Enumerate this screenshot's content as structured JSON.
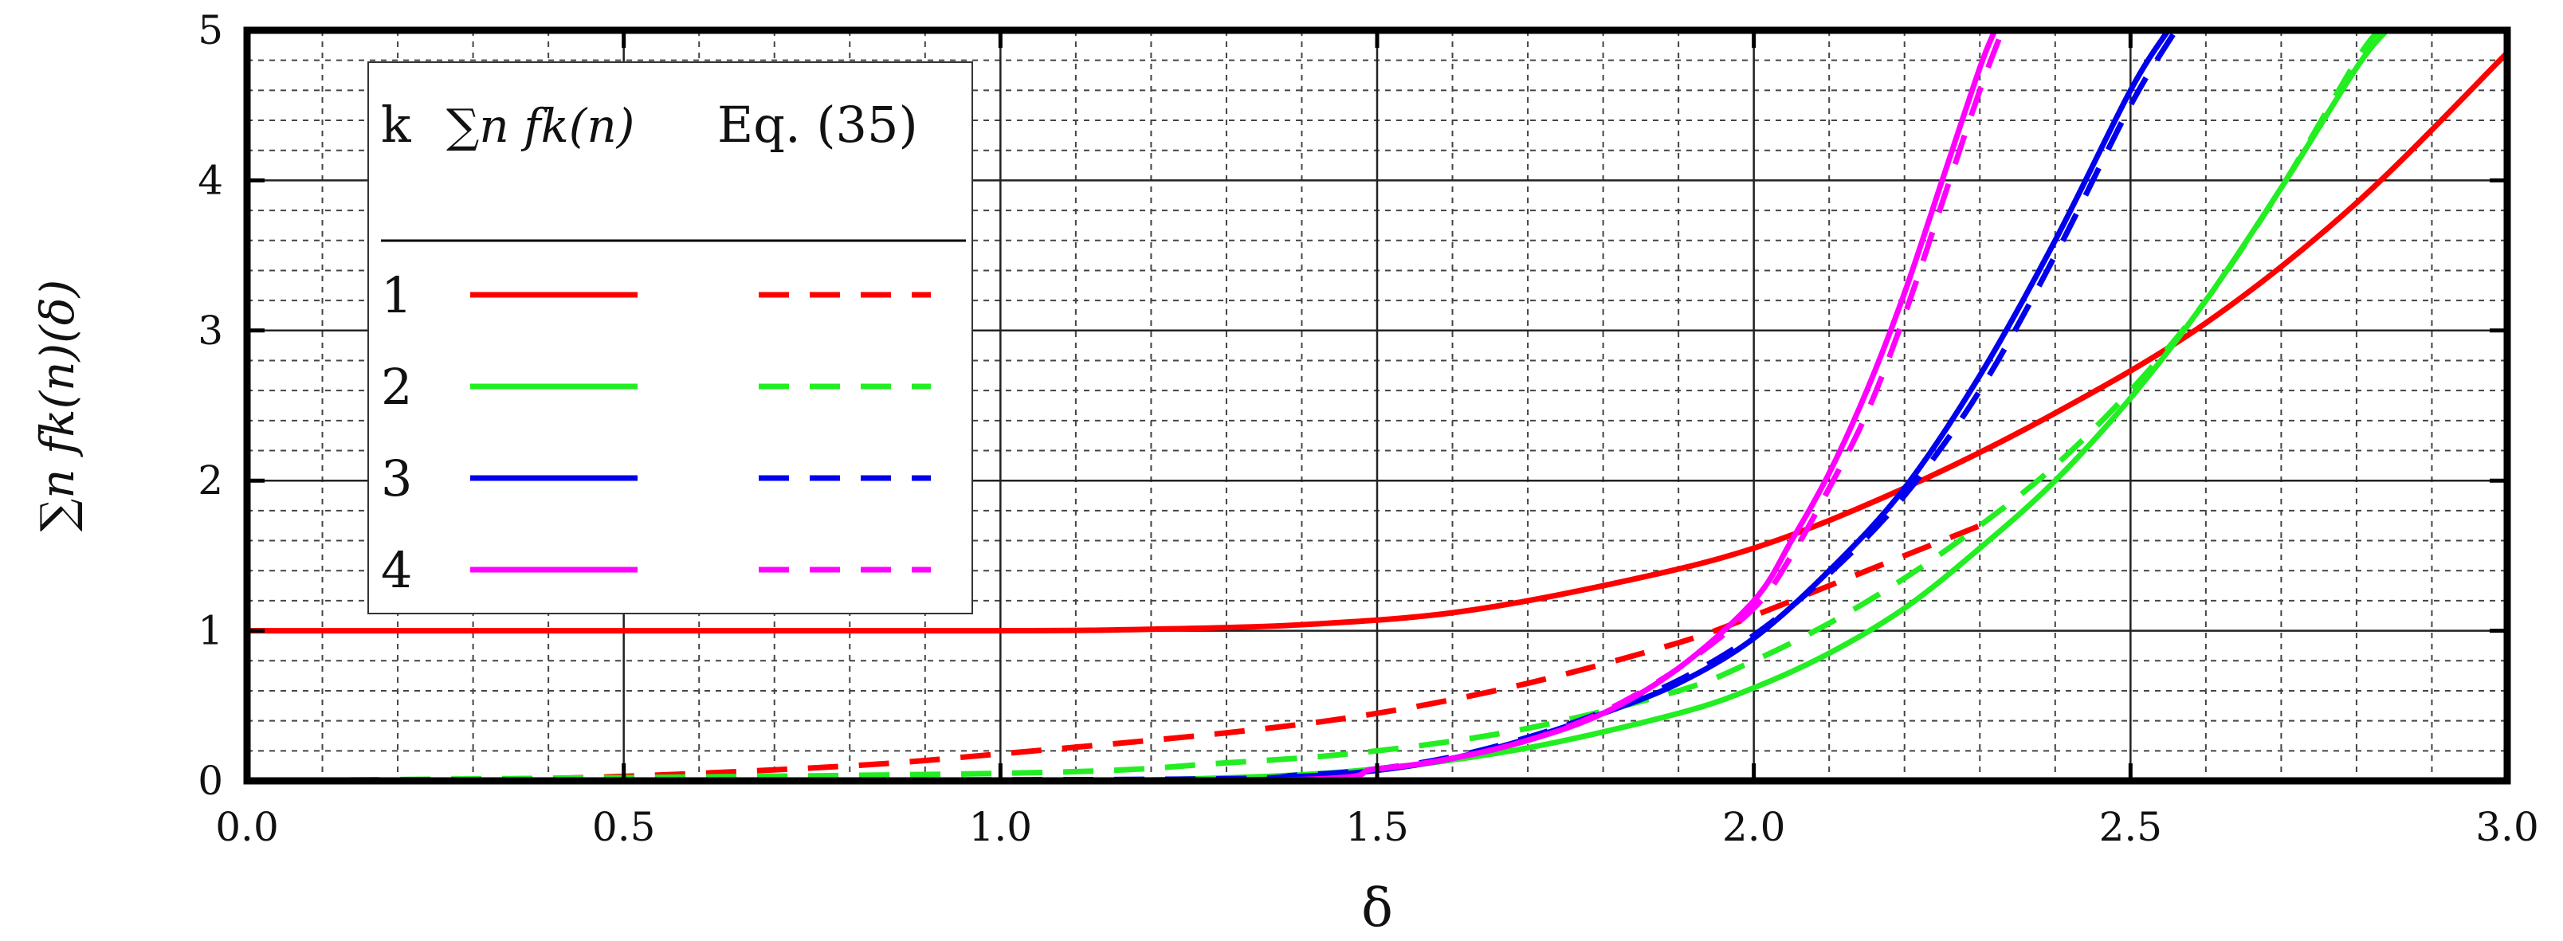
{
  "chart_data": {
    "type": "line",
    "title": "",
    "xlabel": "δ",
    "ylabel": "∑n fk(n)(δ)",
    "xlim": [
      0,
      3
    ],
    "ylim": [
      0,
      5
    ],
    "x_ticks": [
      "0.0",
      "0.5",
      "1.0",
      "1.5",
      "2.0",
      "2.5",
      "3.0"
    ],
    "y_ticks": [
      "0",
      "1",
      "2",
      "3",
      "4",
      "5"
    ],
    "grid": true,
    "legend_placement": "upper-left",
    "legend": {
      "header": [
        "k",
        "∑n fk(n)",
        "Eq. (35)"
      ],
      "rows": [
        "1",
        "2",
        "3",
        "4"
      ]
    },
    "series": [
      {
        "k": "1",
        "style": "solid",
        "color": "#ff0000",
        "x": [
          0.0,
          0.5,
          1.0,
          1.2,
          1.4,
          1.6,
          1.8,
          2.0,
          2.2,
          2.4,
          2.6,
          2.8,
          3.0
        ],
        "y": [
          1.0,
          1.0,
          1.0,
          1.01,
          1.04,
          1.12,
          1.3,
          1.55,
          1.95,
          2.45,
          3.05,
          3.85,
          4.85
        ]
      },
      {
        "k": "1",
        "style": "dashed",
        "color": "#ff0000",
        "x": [
          0.0,
          0.3,
          0.5,
          0.8,
          1.0,
          1.3,
          1.5,
          1.7,
          1.9,
          2.0,
          2.1,
          2.2,
          2.3
        ],
        "y": [
          0.0,
          0.01,
          0.03,
          0.1,
          0.18,
          0.32,
          0.45,
          0.65,
          0.92,
          1.1,
          1.3,
          1.5,
          1.7
        ]
      },
      {
        "k": "2",
        "style": "solid",
        "color": "#22ee22",
        "x": [
          0.0,
          1.0,
          1.3,
          1.5,
          1.7,
          1.9,
          2.0,
          2.1,
          2.2,
          2.3,
          2.4,
          2.5,
          2.6,
          2.7,
          2.8,
          2.84
        ],
        "y": [
          0.0,
          0.0,
          0.02,
          0.08,
          0.22,
          0.45,
          0.62,
          0.85,
          1.15,
          1.55,
          2.0,
          2.55,
          3.2,
          3.95,
          4.75,
          5.0
        ]
      },
      {
        "k": "2",
        "style": "dashed",
        "color": "#22ee22",
        "x": [
          0.0,
          1.0,
          1.3,
          1.5,
          1.7,
          1.9,
          2.0,
          2.1,
          2.2,
          2.3,
          2.4,
          2.5,
          2.6,
          2.7,
          2.8,
          2.83
        ],
        "y": [
          0.0,
          0.05,
          0.12,
          0.2,
          0.35,
          0.6,
          0.8,
          1.05,
          1.35,
          1.7,
          2.1,
          2.6,
          3.2,
          3.95,
          4.8,
          5.0
        ]
      },
      {
        "k": "3",
        "style": "solid",
        "color": "#0000ee",
        "x": [
          0.0,
          1.2,
          1.4,
          1.5,
          1.6,
          1.7,
          1.8,
          1.9,
          2.0,
          2.1,
          2.2,
          2.3,
          2.4,
          2.5,
          2.55
        ],
        "y": [
          0.0,
          0.0,
          0.03,
          0.07,
          0.15,
          0.28,
          0.45,
          0.65,
          0.95,
          1.4,
          1.95,
          2.7,
          3.6,
          4.6,
          5.0
        ]
      },
      {
        "k": "3",
        "style": "dashed",
        "color": "#0000ee",
        "x": [
          0.0,
          1.2,
          1.4,
          1.5,
          1.6,
          1.7,
          1.8,
          1.9,
          2.0,
          2.1,
          2.2,
          2.3,
          2.4,
          2.5,
          2.56
        ],
        "y": [
          0.0,
          0.01,
          0.04,
          0.08,
          0.16,
          0.29,
          0.46,
          0.67,
          0.97,
          1.38,
          1.9,
          2.6,
          3.5,
          4.5,
          5.0
        ]
      },
      {
        "k": "4",
        "style": "solid",
        "color": "#ff00ff",
        "x": [
          0.0,
          1.3,
          1.5,
          1.6,
          1.7,
          1.8,
          1.9,
          2.0,
          2.05,
          2.1,
          2.15,
          2.2,
          2.25,
          2.3,
          2.32
        ],
        "y": [
          0.0,
          0.0,
          0.08,
          0.15,
          0.27,
          0.45,
          0.75,
          1.2,
          1.6,
          2.05,
          2.6,
          3.25,
          4.0,
          4.75,
          5.0
        ]
      },
      {
        "k": "4",
        "style": "dashed",
        "color": "#ff00ff",
        "x": [
          0.0,
          1.3,
          1.5,
          1.6,
          1.7,
          1.8,
          1.9,
          2.0,
          2.05,
          2.1,
          2.15,
          2.2,
          2.25,
          2.3,
          2.33
        ],
        "y": [
          0.0,
          0.0,
          0.08,
          0.15,
          0.27,
          0.46,
          0.75,
          1.15,
          1.5,
          1.95,
          2.45,
          3.1,
          3.85,
          4.6,
          5.0
        ]
      }
    ]
  }
}
